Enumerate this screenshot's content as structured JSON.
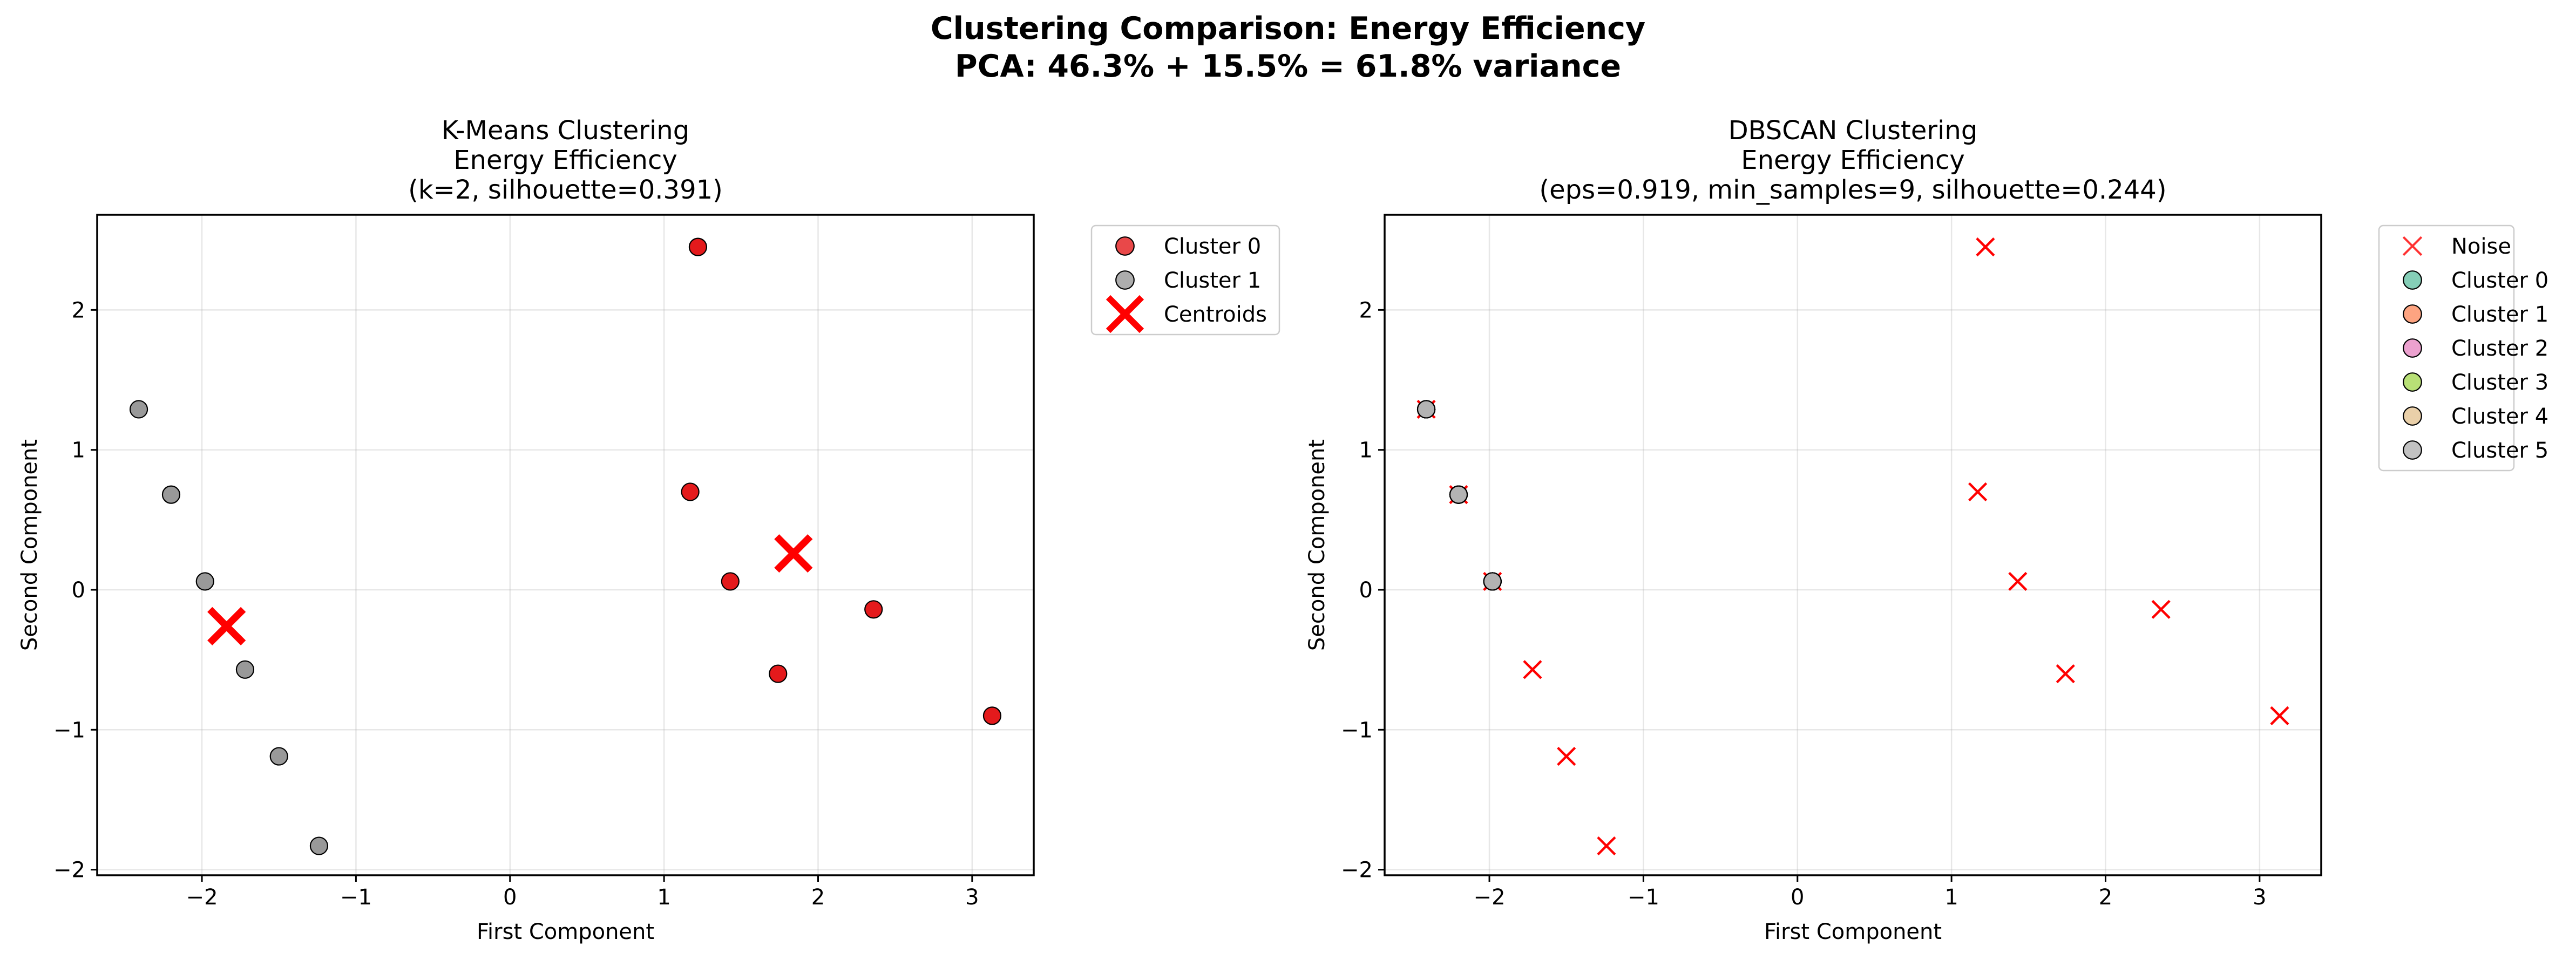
{
  "figure": {
    "title_line1": "Clustering Comparison: Energy Efficiency",
    "title_line2": "PCA: 46.3% + 15.5% = 61.8% variance"
  },
  "chart_data": [
    {
      "type": "scatter",
      "title_lines": [
        "K-Means Clustering",
        "Energy Efficiency",
        "(k=2, silhouette=0.391)"
      ],
      "xlabel": "First Component",
      "ylabel": "Second Component",
      "xlim": [
        -2.68,
        3.4
      ],
      "ylim": [
        -2.04,
        2.68
      ],
      "xticks": [
        -2,
        -1,
        0,
        1,
        2,
        3
      ],
      "yticks": [
        -2,
        -1,
        0,
        1,
        2
      ],
      "grid": true,
      "legend": "outside-upper-right",
      "series": [
        {
          "name": "Cluster 0",
          "marker": "circle",
          "color": "#e41a1c",
          "points": [
            [
              1.22,
              2.45
            ],
            [
              1.17,
              0.7
            ],
            [
              1.43,
              0.06
            ],
            [
              1.74,
              -0.6
            ],
            [
              2.36,
              -0.14
            ],
            [
              3.13,
              -0.9
            ]
          ]
        },
        {
          "name": "Cluster 1",
          "marker": "circle",
          "color": "#999999",
          "points": [
            [
              -2.41,
              1.29
            ],
            [
              -2.2,
              0.68
            ],
            [
              -1.98,
              0.06
            ],
            [
              -1.72,
              -0.57
            ],
            [
              -1.5,
              -1.19
            ],
            [
              -1.24,
              -1.83
            ]
          ]
        },
        {
          "name": "Centroids",
          "marker": "x-thick",
          "color": "#ff0000",
          "points": [
            [
              -1.84,
              -0.26
            ],
            [
              1.84,
              0.26
            ]
          ]
        }
      ]
    },
    {
      "type": "scatter",
      "title_lines": [
        "DBSCAN Clustering",
        "Energy Efficiency",
        "(eps=0.919, min_samples=9, silhouette=0.244)"
      ],
      "xlabel": "First Component",
      "ylabel": "Second Component",
      "xlim": [
        -2.68,
        3.4
      ],
      "ylim": [
        -2.04,
        2.68
      ],
      "xticks": [
        -2,
        -1,
        0,
        1,
        2,
        3
      ],
      "yticks": [
        -2,
        -1,
        0,
        1,
        2
      ],
      "grid": true,
      "legend": "outside-upper-right",
      "series": [
        {
          "name": "Noise",
          "marker": "x",
          "color": "#ff0000",
          "points": [
            [
              1.22,
              2.45
            ],
            [
              1.17,
              0.7
            ],
            [
              1.43,
              0.06
            ],
            [
              1.74,
              -0.6
            ],
            [
              2.36,
              -0.14
            ],
            [
              3.13,
              -0.9
            ],
            [
              -2.41,
              1.29
            ],
            [
              -2.2,
              0.68
            ],
            [
              -1.98,
              0.06
            ],
            [
              -1.72,
              -0.57
            ],
            [
              -1.5,
              -1.19
            ],
            [
              -1.24,
              -1.83
            ]
          ]
        },
        {
          "name": "Cluster 0",
          "marker": "circle",
          "color": "#66c2a5",
          "points": [
            [
              -2.41,
              1.29
            ],
            [
              -2.2,
              0.68
            ],
            [
              -1.98,
              0.06
            ]
          ]
        },
        {
          "name": "Cluster 1",
          "marker": "circle",
          "color": "#fc8d62",
          "points": [
            [
              -2.41,
              1.29
            ],
            [
              -2.2,
              0.68
            ],
            [
              -1.98,
              0.06
            ]
          ]
        },
        {
          "name": "Cluster 2",
          "marker": "circle",
          "color": "#e78ac3",
          "points": [
            [
              -2.41,
              1.29
            ],
            [
              -2.2,
              0.68
            ],
            [
              -1.98,
              0.06
            ]
          ]
        },
        {
          "name": "Cluster 3",
          "marker": "circle",
          "color": "#a6d854",
          "points": [
            [
              -2.41,
              1.29
            ],
            [
              -2.2,
              0.68
            ],
            [
              -1.98,
              0.06
            ]
          ]
        },
        {
          "name": "Cluster 4",
          "marker": "circle",
          "color": "#e5c494",
          "points": [
            [
              -2.41,
              1.29
            ],
            [
              -2.2,
              0.68
            ],
            [
              -1.98,
              0.06
            ]
          ]
        },
        {
          "name": "Cluster 5",
          "marker": "circle",
          "color": "#b3b3b3",
          "points": [
            [
              -2.41,
              1.29
            ],
            [
              -2.2,
              0.68
            ],
            [
              -1.98,
              0.06
            ]
          ]
        }
      ]
    }
  ]
}
